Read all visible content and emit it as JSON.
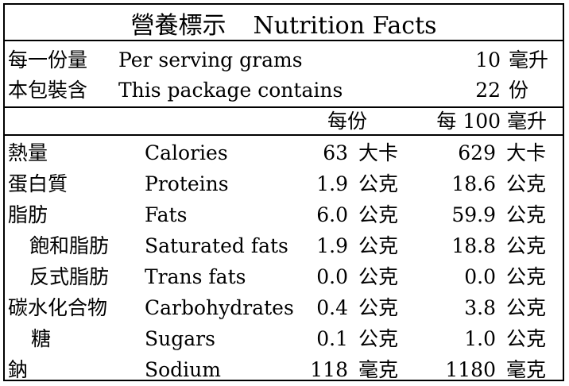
{
  "title": {
    "zh": "營養標示",
    "en": "Nutrition Facts"
  },
  "serving": [
    {
      "zh": "每一份量",
      "en": "Per serving grams",
      "value": "10",
      "unit": "毫升"
    },
    {
      "zh": "本包裝含",
      "en": "This package contains",
      "value": "22",
      "unit": "份"
    }
  ],
  "columns": {
    "per_serving": "每份",
    "per_100": "每 100 毫升"
  },
  "rows": [
    {
      "zh": "熱量",
      "en": "Calories",
      "v1": "63",
      "u1": "大卡",
      "v2": "629",
      "u2": "大卡",
      "indent": false
    },
    {
      "zh": "蛋白質",
      "en": "Proteins",
      "v1": "1.9",
      "u1": "公克",
      "v2": "18.6",
      "u2": "公克",
      "indent": false
    },
    {
      "zh": "脂肪",
      "en": "Fats",
      "v1": "6.0",
      "u1": "公克",
      "v2": "59.9",
      "u2": "公克",
      "indent": false
    },
    {
      "zh": "飽和脂肪",
      "en": "Saturated fats",
      "v1": "1.9",
      "u1": "公克",
      "v2": "18.8",
      "u2": "公克",
      "indent": true
    },
    {
      "zh": "反式脂肪",
      "en": "Trans fats",
      "v1": "0.0",
      "u1": "公克",
      "v2": "0.0",
      "u2": "公克",
      "indent": true
    },
    {
      "zh": "碳水化合物",
      "en": "Carbohydrates",
      "v1": "0.4",
      "u1": "公克",
      "v2": "3.8",
      "u2": "公克",
      "indent": false
    },
    {
      "zh": "糖",
      "en": "Sugars",
      "v1": "0.1",
      "u1": "公克",
      "v2": "1.0",
      "u2": "公克",
      "indent": true
    },
    {
      "zh": "鈉",
      "en": "Sodium",
      "v1": "118",
      "u1": "毫克",
      "v2": "1180",
      "u2": "毫克",
      "indent": false
    }
  ]
}
